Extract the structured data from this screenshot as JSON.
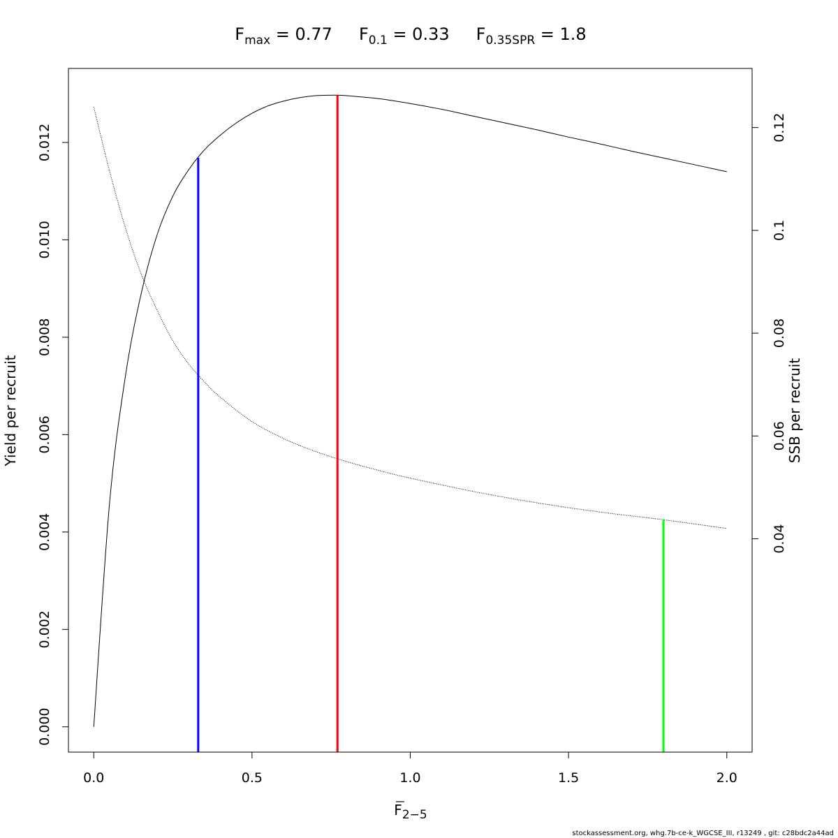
{
  "chart_data": {
    "type": "line",
    "title": {
      "parts": [
        {
          "base": "F",
          "sub": "max",
          "value": " = 0.77"
        },
        {
          "base": "F",
          "sub": "0.1",
          "value": " = 0.33"
        },
        {
          "base": "F",
          "sub": "0.35SPR",
          "value": " = 1.8"
        }
      ]
    },
    "xlabel": {
      "base": "F",
      "sub": "2−5"
    },
    "ylabel": "Yield per recruit",
    "y2label": "SSB per recruit",
    "xlim": [
      -0.08,
      2.08
    ],
    "ylim": [
      -0.00052,
      0.01352
    ],
    "y2lim": [
      -0.0015,
      0.1315
    ],
    "x_ticks": [
      "0.0",
      "0.5",
      "1.0",
      "1.5",
      "2.0"
    ],
    "y_ticks": [
      "0.000",
      "0.002",
      "0.004",
      "0.006",
      "0.008",
      "0.010",
      "0.012"
    ],
    "y2_ticks": [
      "0.04",
      "0.06",
      "0.08",
      "0.1",
      "0.12"
    ],
    "series": [
      {
        "axis": "left",
        "style": "solid",
        "x": [
          0.0,
          0.05,
          0.1,
          0.15,
          0.2,
          0.25,
          0.3,
          0.35,
          0.4,
          0.45,
          0.5,
          0.55,
          0.6,
          0.65,
          0.7,
          0.75,
          0.77,
          0.8,
          0.9,
          1.0,
          1.1,
          1.2,
          1.3,
          1.4,
          1.5,
          1.6,
          1.7,
          1.8,
          1.9,
          2.0
        ],
        "values": [
          0.0,
          0.0046,
          0.0072,
          0.0089,
          0.0101,
          0.0109,
          0.01144,
          0.01185,
          0.01215,
          0.0124,
          0.0126,
          0.01275,
          0.01285,
          0.01292,
          0.01296,
          0.01297,
          0.01297,
          0.01296,
          0.0129,
          0.0128,
          0.01268,
          0.01254,
          0.0124,
          0.01226,
          0.01211,
          0.01197,
          0.01182,
          0.01168,
          0.01154,
          0.0114
        ]
      },
      {
        "axis": "right",
        "style": "dotted",
        "x": [
          0.0,
          0.05,
          0.1,
          0.15,
          0.2,
          0.25,
          0.3,
          0.35,
          0.4,
          0.5,
          0.6,
          0.7,
          0.8,
          0.9,
          1.0,
          1.2,
          1.4,
          1.6,
          1.8,
          2.0
        ],
        "values": [
          0.124,
          0.1115,
          0.1005,
          0.0915,
          0.0845,
          0.0785,
          0.074,
          0.0705,
          0.0675,
          0.0628,
          0.0595,
          0.057,
          0.055,
          0.0533,
          0.0518,
          0.0492,
          0.047,
          0.0452,
          0.0437,
          0.042
        ]
      }
    ],
    "reference_lines": [
      {
        "x": 0.33,
        "color": "#0000ff",
        "from": "ybottom",
        "to_series": 0
      },
      {
        "x": 0.77,
        "color": "#ff0000",
        "from": "ybottom",
        "to_series": 0
      },
      {
        "x": 1.8,
        "color": "#00ff00",
        "from": "ybottom",
        "to_series": 1
      }
    ],
    "grid": false,
    "legend": "none"
  },
  "footer": "stockassessment.org, whg.7b-ce-k_WGCSE_III, r13249 , git: c28bdc2a44ad"
}
